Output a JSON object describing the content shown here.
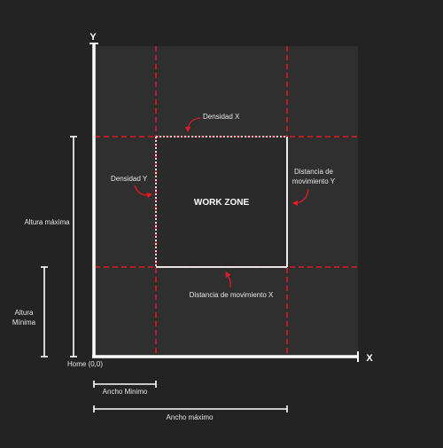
{
  "colors": {
    "background": "#232323",
    "panel": "#2f2f2f",
    "white": "#ffffff",
    "accent_red": "#e01b24",
    "text": "#e6e6e6"
  },
  "axes": {
    "y_label": "Y",
    "x_label": "X",
    "origin_label": "Home (0,0)"
  },
  "center": {
    "label": "WORK ZONE"
  },
  "annotations": {
    "density_x": "Densidad X",
    "density_y": "Densidad Y",
    "move_y_line1": "Distancia de",
    "move_y_line2": "movimiento Y",
    "move_x": "Distancia de movimiento X"
  },
  "dimensions": {
    "max_height": "Altura máxima",
    "min_height_line1": "Altura",
    "min_height_line2": "Mínima",
    "min_width": "Ancho Minimo",
    "max_width": "Ancho máximo"
  }
}
